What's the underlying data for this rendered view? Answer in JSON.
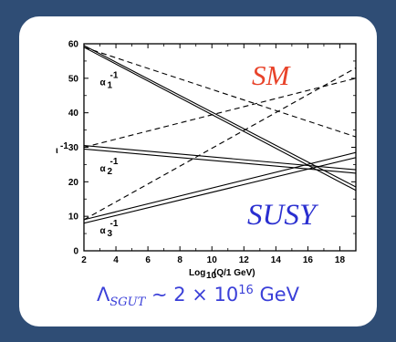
{
  "chart_data": {
    "type": "line",
    "title": "",
    "xlabel": "Log10(Q/1 GeV)",
    "ylabel": "α⁻¹",
    "xlim": [
      2,
      19
    ],
    "ylim": [
      0,
      60
    ],
    "xticks": [
      "2",
      "4",
      "6",
      "8",
      "10",
      "12",
      "14",
      "16",
      "18"
    ],
    "yticks": [
      "0",
      "10",
      "20",
      "30",
      "40",
      "50",
      "60"
    ],
    "series": [
      {
        "name": "SM α1⁻¹",
        "style": "dashed",
        "x": [
          2,
          19
        ],
        "y": [
          59,
          33
        ]
      },
      {
        "name": "SM α2⁻¹",
        "style": "dashed",
        "x": [
          2,
          19
        ],
        "y": [
          30,
          50
        ]
      },
      {
        "name": "SM α3⁻¹",
        "style": "dashed",
        "x": [
          2,
          19
        ],
        "y": [
          9,
          53
        ]
      },
      {
        "name": "SUSY α1⁻¹ (upper)",
        "style": "solid",
        "x": [
          2,
          19
        ],
        "y": [
          59.5,
          18.5
        ]
      },
      {
        "name": "SUSY α1⁻¹ (lower)",
        "style": "solid",
        "x": [
          2,
          19
        ],
        "y": [
          59.0,
          17.5
        ]
      },
      {
        "name": "SUSY α2⁻¹ (upper)",
        "style": "solid",
        "x": [
          2,
          19
        ],
        "y": [
          30.5,
          23.5
        ]
      },
      {
        "name": "SUSY α2⁻¹ (lower)",
        "style": "solid",
        "x": [
          2,
          19
        ],
        "y": [
          29.5,
          22.5
        ]
      },
      {
        "name": "SUSY α3⁻¹ (upper)",
        "style": "solid",
        "x": [
          2,
          19
        ],
        "y": [
          9.0,
          28.5
        ]
      },
      {
        "name": "SUSY α3⁻¹ (lower)",
        "style": "solid",
        "x": [
          2,
          19
        ],
        "y": [
          8.0,
          27.0
        ]
      }
    ],
    "curve_labels": [
      {
        "text": "α1⁻¹",
        "x": 3.0,
        "y": 48
      },
      {
        "text": "α2⁻¹",
        "x": 3.0,
        "y": 23
      },
      {
        "text": "α3⁻¹",
        "x": 3.0,
        "y": 5
      }
    ],
    "annotations": [
      {
        "text": "SM",
        "color": "#e8432a"
      },
      {
        "text": "SUSY",
        "color": "#2a2fd0"
      }
    ],
    "grid": false
  },
  "labels": {
    "y_axis_symbol": "ι",
    "y_axis_sup": "-1",
    "alpha": "α",
    "alpha_sub": [
      "1",
      "2",
      "3"
    ],
    "alpha_sup": "-1",
    "x_axis_prefix": "Log",
    "x_axis_sub": "10",
    "x_axis_suffix": "(Q/1 GeV)"
  },
  "footer": {
    "lambda": "Λ",
    "subscript": "SGUT",
    "relation": " ∼ 2 × 10",
    "exponent": "16",
    "unit": " GeV"
  },
  "colors": {
    "background": "#2f4d75",
    "card": "#ffffff",
    "sm_label": "#e8432a",
    "susy_label": "#2a2fd0",
    "footer_text": "#3a3fd8"
  }
}
